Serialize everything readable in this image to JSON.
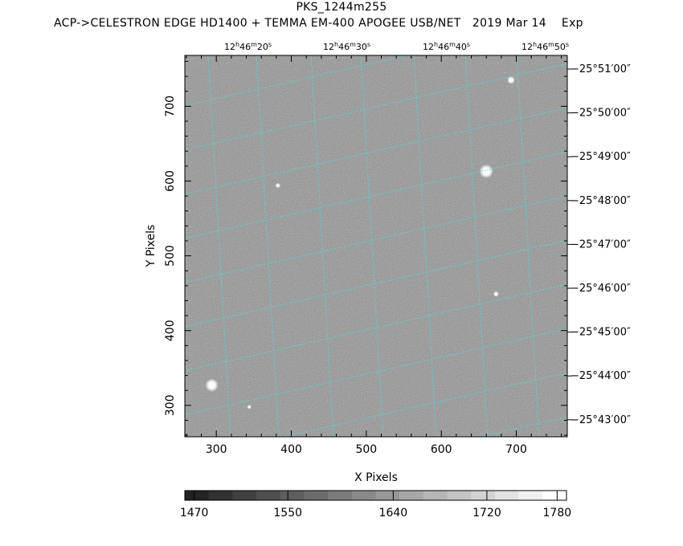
{
  "title": "PKS_1244m255",
  "subtitle": "ACP->CELESTRON EDGE HD1400 + TEMMA EM-400 APOGEE USB/NET   2019 Mar 14    Exp",
  "x_axis": {
    "label": "X Pixels",
    "ticks": [
      "300",
      "400",
      "500",
      "600",
      "700"
    ],
    "tick_values": [
      300,
      400,
      500,
      600,
      700
    ],
    "range": [
      258,
      768
    ]
  },
  "y_axis": {
    "label": "Y Pixels",
    "ticks": [
      "300",
      "400",
      "500",
      "600",
      "700"
    ],
    "tick_values": [
      300,
      400,
      500,
      600,
      700
    ],
    "range": [
      258,
      768
    ]
  },
  "ra_ticks": [
    {
      "h": "12",
      "m": "46",
      "s": "20"
    },
    {
      "h": "12",
      "m": "46",
      "s": "30"
    },
    {
      "h": "12",
      "m": "46",
      "s": "40"
    },
    {
      "h": "12",
      "m": "46",
      "s": "50"
    }
  ],
  "dec_ticks": [
    "−25°51′00″",
    "−25°50′00″",
    "−25°49′00″",
    "−25°48′00″",
    "−25°47′00″",
    "−25°46′00″",
    "−25°45′00″",
    "−25°44′00″",
    "−25°43′00″"
  ],
  "colorbar": {
    "labels": [
      "1470",
      "1550",
      "1640",
      "1720",
      "1780"
    ],
    "label_values": [
      1470,
      1550,
      1640,
      1720,
      1780
    ],
    "min": 1462,
    "max": 1788,
    "steps": 16
  },
  "colors": {
    "grid": "#5fd3d3",
    "background": "#ffffff",
    "frame": "#000000"
  },
  "stars": [
    {
      "x": 294,
      "y": 327,
      "size": 2.4
    },
    {
      "x": 660,
      "y": 613,
      "size": 2.6
    },
    {
      "x": 693,
      "y": 735,
      "size": 1.4
    },
    {
      "x": 673,
      "y": 449,
      "size": 1.0
    },
    {
      "x": 382,
      "y": 594,
      "size": 0.9
    },
    {
      "x": 344,
      "y": 298,
      "size": 0.8
    }
  ]
}
